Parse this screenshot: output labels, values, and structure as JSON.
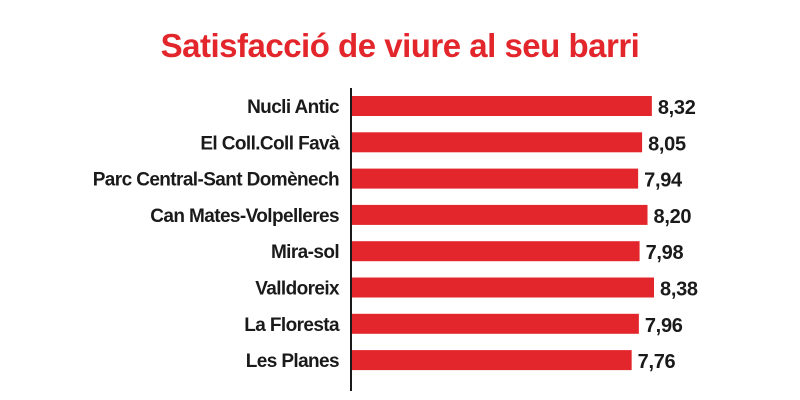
{
  "title": "Satisfacció de viure al seu barri",
  "colors": {
    "title": "#e3262b",
    "bar": "#e3262b",
    "axis": "#1a1a1a",
    "text": "#1a1a1a"
  },
  "chart_data": {
    "type": "bar",
    "orientation": "horizontal",
    "title": "Satisfacció de viure al seu barri",
    "categories": [
      "Nucli Antic",
      "El Coll.Coll Favà",
      "Parc Central-Sant Domènech",
      "Can Mates-Volpelleres",
      "Mira-sol",
      "Valldoreix",
      "La Floresta",
      "Les Planes"
    ],
    "values": [
      8.32,
      8.05,
      7.94,
      8.2,
      7.98,
      8.38,
      7.96,
      7.76
    ],
    "value_labels": [
      "8,32",
      "8,05",
      "7,94",
      "8,20",
      "7,98",
      "8,38",
      "7,96",
      "7,76"
    ],
    "xlim": [
      0,
      8.38
    ],
    "grid": false,
    "legend": "none"
  }
}
